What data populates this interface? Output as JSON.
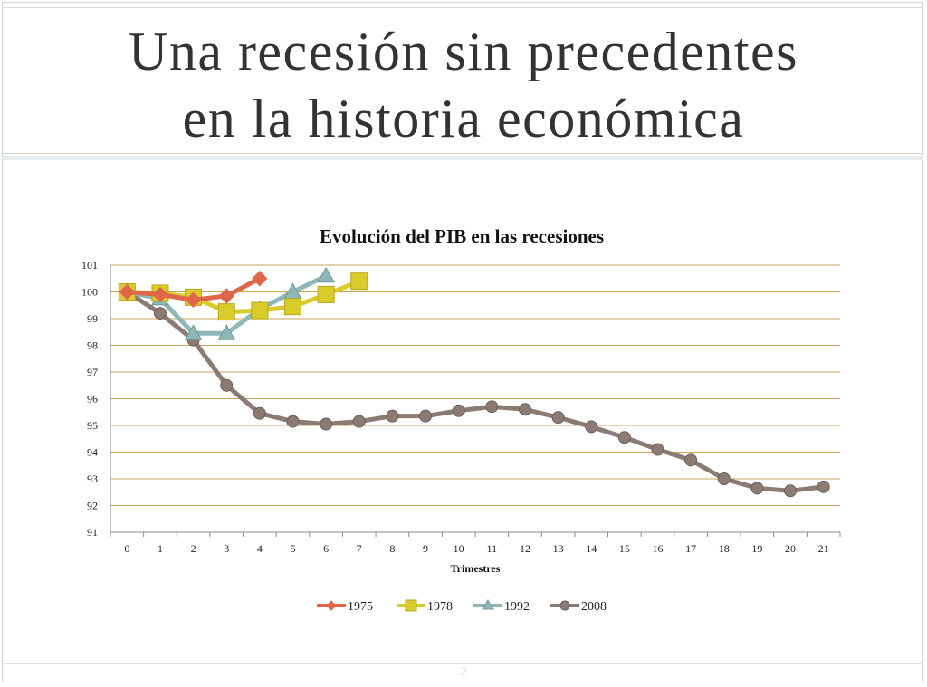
{
  "slide": {
    "title_line1": "Una recesión sin precedentes",
    "title_line2": "en la historia económica",
    "page_number": "2"
  },
  "chart_data": {
    "type": "line",
    "title": "Evolución del PIB en las recesiones",
    "xlabel": "Trimestres",
    "ylabel": "",
    "x": [
      0,
      1,
      2,
      3,
      4,
      5,
      6,
      7,
      8,
      9,
      10,
      11,
      12,
      13,
      14,
      15,
      16,
      17,
      18,
      19,
      20,
      21
    ],
    "ylim": [
      91,
      101
    ],
    "yticks": [
      91,
      92,
      93,
      94,
      95,
      96,
      97,
      98,
      99,
      100,
      101
    ],
    "grid": true,
    "legend_position": "bottom",
    "series": [
      {
        "name": "1975",
        "color": "#e0664a",
        "marker": "diamond",
        "x": [
          0,
          1,
          2,
          3,
          4
        ],
        "values": [
          100,
          99.9,
          99.7,
          99.85,
          100.5
        ]
      },
      {
        "name": "1978",
        "color": "#d9cb2a",
        "marker": "square",
        "x": [
          0,
          1,
          2,
          3,
          4,
          5,
          6,
          7
        ],
        "values": [
          100,
          99.95,
          99.8,
          99.25,
          99.3,
          99.45,
          99.9,
          100.4
        ]
      },
      {
        "name": "1992",
        "color": "#8fb7b7",
        "marker": "triangle",
        "x": [
          0,
          1,
          2,
          3,
          4,
          5,
          6
        ],
        "values": [
          100,
          99.75,
          98.45,
          98.45,
          99.35,
          100.0,
          100.6
        ]
      },
      {
        "name": "2008",
        "color": "#8c7b74",
        "marker": "circle",
        "x": [
          0,
          1,
          2,
          3,
          4,
          5,
          6,
          7,
          8,
          9,
          10,
          11,
          12,
          13,
          14,
          15,
          16,
          17,
          18,
          19,
          20,
          21
        ],
        "values": [
          100,
          99.2,
          98.2,
          96.5,
          95.45,
          95.15,
          95.05,
          95.15,
          95.35,
          95.35,
          95.55,
          95.7,
          95.6,
          95.3,
          94.95,
          94.55,
          94.1,
          93.7,
          93.0,
          92.65,
          92.55,
          92.7
        ]
      }
    ]
  }
}
